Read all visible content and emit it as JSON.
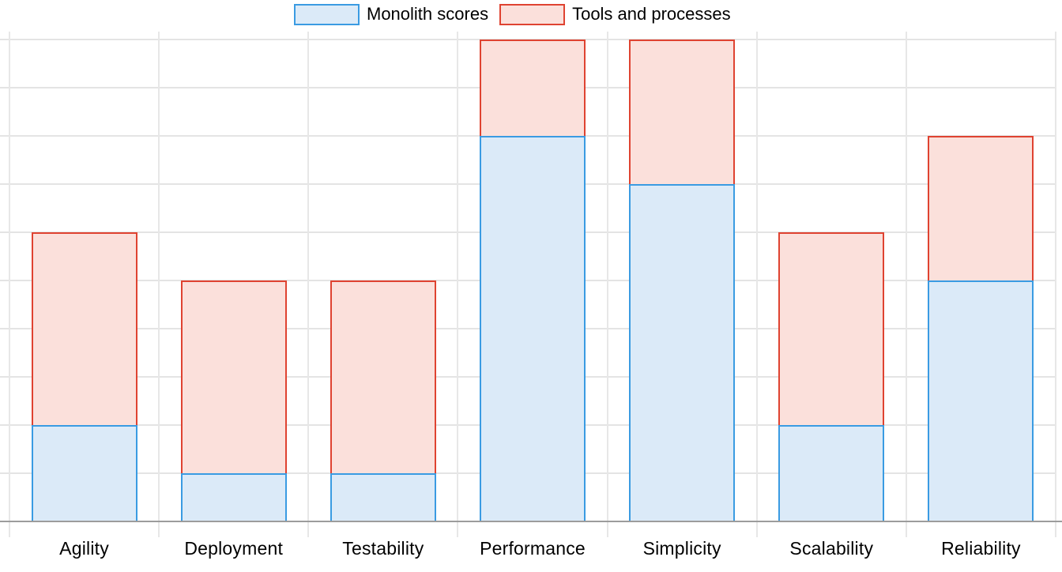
{
  "chart_data": {
    "type": "bar",
    "stacked": true,
    "title": "",
    "xlabel": "",
    "ylabel": "",
    "categories": [
      "Agility",
      "Deployment",
      "Testability",
      "Performance",
      "Simplicity",
      "Scalability",
      "Reliability"
    ],
    "series": [
      {
        "name": "Monolith scores",
        "values": [
          2,
          1,
          1,
          8,
          7,
          2,
          5
        ],
        "fill_color": "#DBEAF8",
        "border_color": "#3A9BE2"
      },
      {
        "name": "Tools and processes",
        "values": [
          4,
          4,
          4,
          2,
          3,
          4,
          3
        ],
        "fill_color": "#FBE0DB",
        "border_color": "#DF4331"
      }
    ],
    "stack_totals": [
      6,
      5,
      5,
      10,
      10,
      6,
      8
    ],
    "ylim": [
      0,
      10
    ],
    "y_gridline_step": 1,
    "y_tick_labels_visible": false,
    "grid": "horizontal gridlines every 1 unit; vertical gridlines at category boundaries with short ticks below axis",
    "legend_position": "top-center"
  },
  "colors": {
    "background": "#FFFFFF",
    "gridline": "#E4E4E4",
    "axis": "#9C9C9C",
    "label_text": "#000000"
  }
}
